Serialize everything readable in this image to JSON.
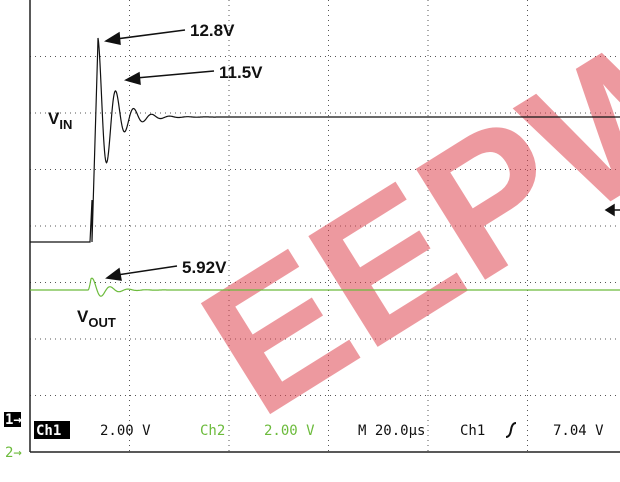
{
  "annotations": {
    "vin_peak": "12.8V",
    "vin_ring": "11.5V",
    "vout_peak": "5.92V",
    "vin_label": {
      "main": "V",
      "sub": "IN"
    },
    "vout_label": {
      "main": "V",
      "sub": "OUT"
    }
  },
  "markers": {
    "ch1": "1→",
    "ch2": "2→"
  },
  "status": {
    "ch1_name": "Ch1",
    "ch1_scale": "2.00 V",
    "ch2_name": "Ch2",
    "ch2_scale": "2.00 V",
    "timebase": "M 20.0µs",
    "trigger_source": "Ch1",
    "trigger_level": "7.04 V"
  },
  "watermark": "EEPW"
}
